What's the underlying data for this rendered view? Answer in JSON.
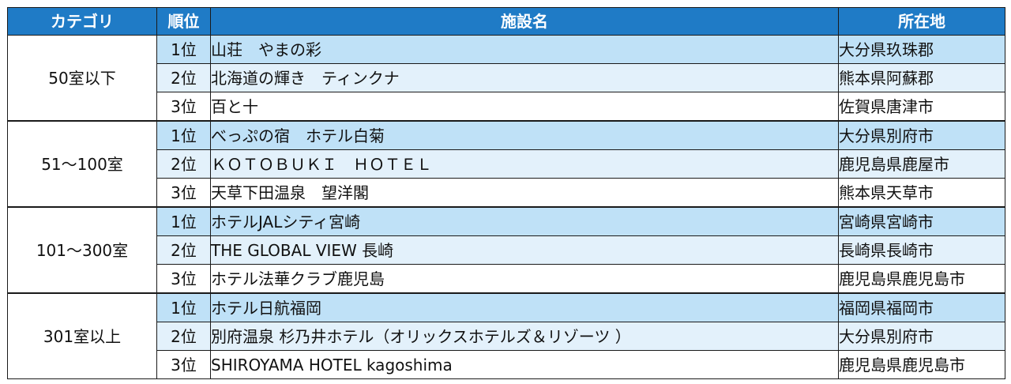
{
  "header": {
    "category": "カテゴリ",
    "rank": "順位",
    "facility": "施設名",
    "location": "所在地"
  },
  "groups": [
    {
      "category": "50室以下",
      "rows": [
        {
          "rank": "1位",
          "name": "山荘　やまの彩",
          "location": "大分県玖珠郡"
        },
        {
          "rank": "2位",
          "name": "北海道の輝き　ティンクナ",
          "location": "熊本県阿蘇郡"
        },
        {
          "rank": "3位",
          "name": "百と十",
          "location": "佐賀県唐津市"
        }
      ]
    },
    {
      "category": "51～100室",
      "rows": [
        {
          "rank": "1位",
          "name": "べっぷの宿　ホテル白菊",
          "location": "大分県別府市"
        },
        {
          "rank": "2位",
          "name": "ＫＯＴＯＢＵＫＩ　ＨＯＴＥＬ",
          "location": "鹿児島県鹿屋市"
        },
        {
          "rank": "3位",
          "name": "天草下田温泉　望洋閣",
          "location": "熊本県天草市"
        }
      ]
    },
    {
      "category": "101～300室",
      "rows": [
        {
          "rank": "1位",
          "name": "ホテルJALシティ宮崎",
          "location": "宮崎県宮崎市"
        },
        {
          "rank": "2位",
          "name": "THE GLOBAL VIEW 長崎",
          "location": "長崎県長崎市"
        },
        {
          "rank": "3位",
          "name": "ホテル法華クラブ鹿児島",
          "location": "鹿児島県鹿児島市"
        }
      ]
    },
    {
      "category": "301室以上",
      "rows": [
        {
          "rank": "1位",
          "name": "ホテル日航福岡",
          "location": "福岡県福岡市"
        },
        {
          "rank": "2位",
          "name": "別府温泉 杉乃井ホテル（オリックスホテルズ＆リゾーツ ）",
          "location": "大分県別府市"
        },
        {
          "rank": "3位",
          "name": "SHIROYAMA HOTEL kagoshima",
          "location": "鹿児島県鹿児島市"
        }
      ]
    }
  ]
}
